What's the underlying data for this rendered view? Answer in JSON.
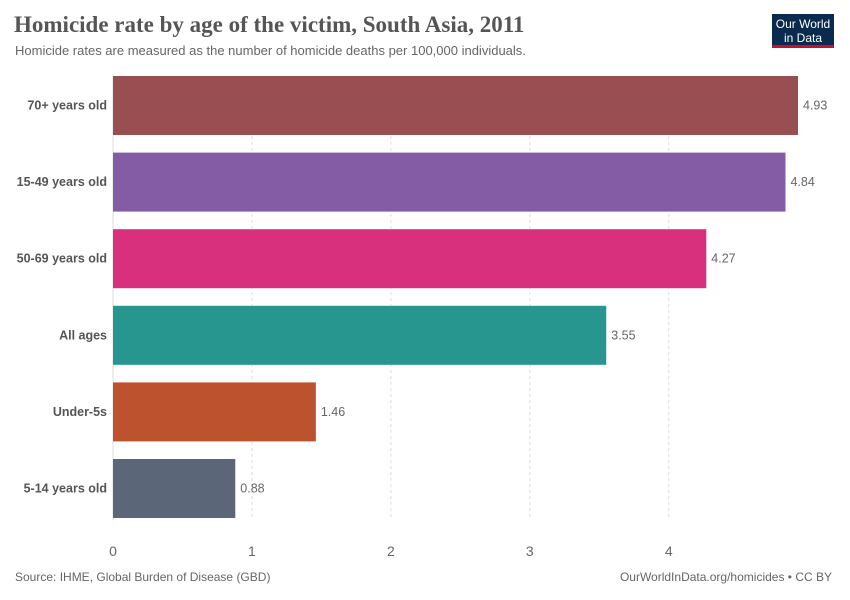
{
  "chart_data": {
    "type": "bar",
    "orientation": "horizontal",
    "title": "Homicide rate by age of the victim, South Asia, 2011",
    "subtitle": "Homicide rates are measured as the number of homicide deaths per 100,000 individuals.",
    "categories": [
      "70+ years old",
      "15-49 years old",
      "50-69 years old",
      "All ages",
      "Under-5s",
      "5-14 years old"
    ],
    "values": [
      4.93,
      4.84,
      4.27,
      3.55,
      1.46,
      0.88
    ],
    "value_labels": [
      "4.93",
      "4.84",
      "4.27",
      "3.55",
      "1.46",
      "0.88"
    ],
    "colors": [
      "#994f52",
      "#845ba5",
      "#d8307c",
      "#26968f",
      "#bd532e",
      "#5b6779"
    ],
    "xlim": [
      0,
      4.93
    ],
    "xticks": [
      "0",
      "1",
      "2",
      "3",
      "4"
    ],
    "grid": true,
    "source": "Source: IHME, Global Burden of Disease (GBD)",
    "credit": "OurWorldInData.org/homicides • CC BY"
  },
  "logo": {
    "line1": "Our World",
    "line2": "in Data",
    "bg": "#0a2a4f",
    "accent": "#c8102e"
  }
}
